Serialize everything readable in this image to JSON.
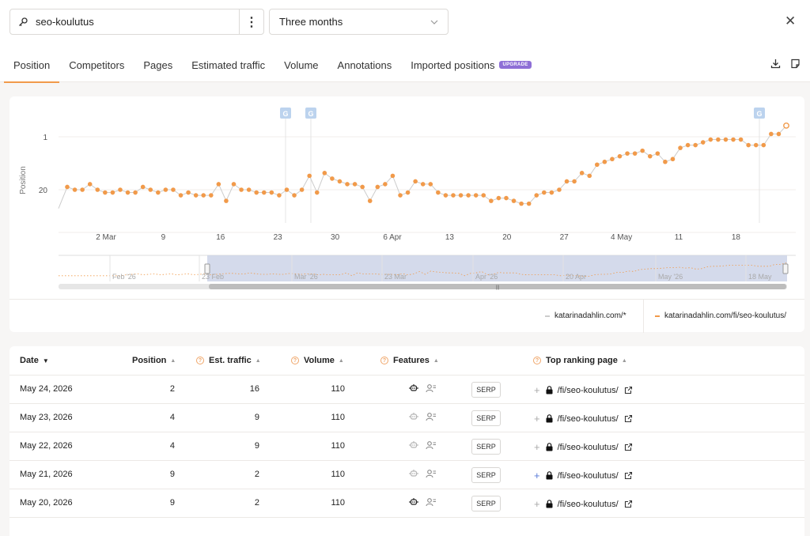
{
  "search": {
    "keyword": "seo-koulutus",
    "range": "Three months"
  },
  "icons": {
    "key": "key-icon",
    "kebab": "kebab-menu-icon",
    "chevron": "chevron-down-icon",
    "close": "close-icon",
    "download": "download-icon",
    "note": "note-icon"
  },
  "tabs": [
    {
      "label": "Position",
      "active": true
    },
    {
      "label": "Competitors"
    },
    {
      "label": "Pages"
    },
    {
      "label": "Estimated traffic"
    },
    {
      "label": "Volume"
    },
    {
      "label": "Annotations"
    },
    {
      "label": "Imported positions",
      "badge": "UPGRADE"
    }
  ],
  "colors": {
    "accent": "#f19a4a",
    "upgrade": "#8e6fd6",
    "navigator": "#cdd4e8",
    "google_marker": "#bcd3ee"
  },
  "chart_data": {
    "type": "line",
    "ylabel": "Position",
    "y_ticks": [
      "1",
      "20"
    ],
    "yaxis_reversed": true,
    "x_ticks": [
      "2 Mar",
      "9",
      "16",
      "23",
      "30",
      "6 Apr",
      "13",
      "20",
      "27",
      "4 May",
      "11",
      "18"
    ],
    "google_markers": [
      "G",
      "G",
      "G"
    ],
    "navigator_ticks": [
      "Feb '26",
      "23 Feb",
      "Mar '26",
      "23 Mar",
      "Apr '26",
      "20 Apr",
      "May '26",
      "18 May"
    ],
    "series": [
      {
        "name": "katarinadahlin.com/fi/seo-koulutus/",
        "color": "#f19a4a",
        "values": [
          19,
          20,
          20,
          18,
          20,
          21,
          21,
          20,
          21,
          21,
          19,
          20,
          21,
          20,
          20,
          22,
          21,
          22,
          22,
          22,
          18,
          24,
          18,
          20,
          20,
          21,
          21,
          21,
          22,
          20,
          22,
          20,
          15,
          21,
          14,
          16,
          17,
          18,
          18,
          19,
          24,
          19,
          18,
          15,
          22,
          21,
          17,
          18,
          18,
          21,
          22,
          22,
          22,
          22,
          22,
          22,
          24,
          23,
          23,
          24,
          25,
          25,
          22,
          21,
          21,
          20,
          17,
          17,
          14,
          15,
          11,
          10,
          9,
          8,
          7,
          7,
          6,
          8,
          7,
          10,
          9,
          5,
          4,
          4,
          3,
          2,
          2,
          2,
          2,
          2,
          4,
          4,
          4,
          0,
          0,
          -3
        ],
        "last_point": -3
      }
    ],
    "series_labels": [
      "katarinadahlin.com/*",
      "katarinadahlin.com/fi/seo-koulutus/"
    ]
  },
  "table": {
    "columns": {
      "date": "Date",
      "position": "Position",
      "traffic": "Est. traffic",
      "volume": "Volume",
      "features": "Features",
      "page": "Top ranking page"
    },
    "rows": [
      {
        "date": "May 24, 2026",
        "position": "2",
        "traffic": "16",
        "volume": "110",
        "serp": "SERP",
        "page": "/fi/seo-koulutus/"
      },
      {
        "date": "May 23, 2026",
        "position": "4",
        "traffic": "9",
        "volume": "110",
        "serp": "SERP",
        "page": "/fi/seo-koulutus/"
      },
      {
        "date": "May 22, 2026",
        "position": "4",
        "traffic": "9",
        "volume": "110",
        "serp": "SERP",
        "page": "/fi/seo-koulutus/"
      },
      {
        "date": "May 21, 2026",
        "position": "9",
        "traffic": "2",
        "volume": "110",
        "serp": "SERP",
        "page": "/fi/seo-koulutus/"
      },
      {
        "date": "May 20, 2026",
        "position": "9",
        "traffic": "2",
        "volume": "110",
        "serp": "SERP",
        "page": "/fi/seo-koulutus/"
      }
    ]
  }
}
